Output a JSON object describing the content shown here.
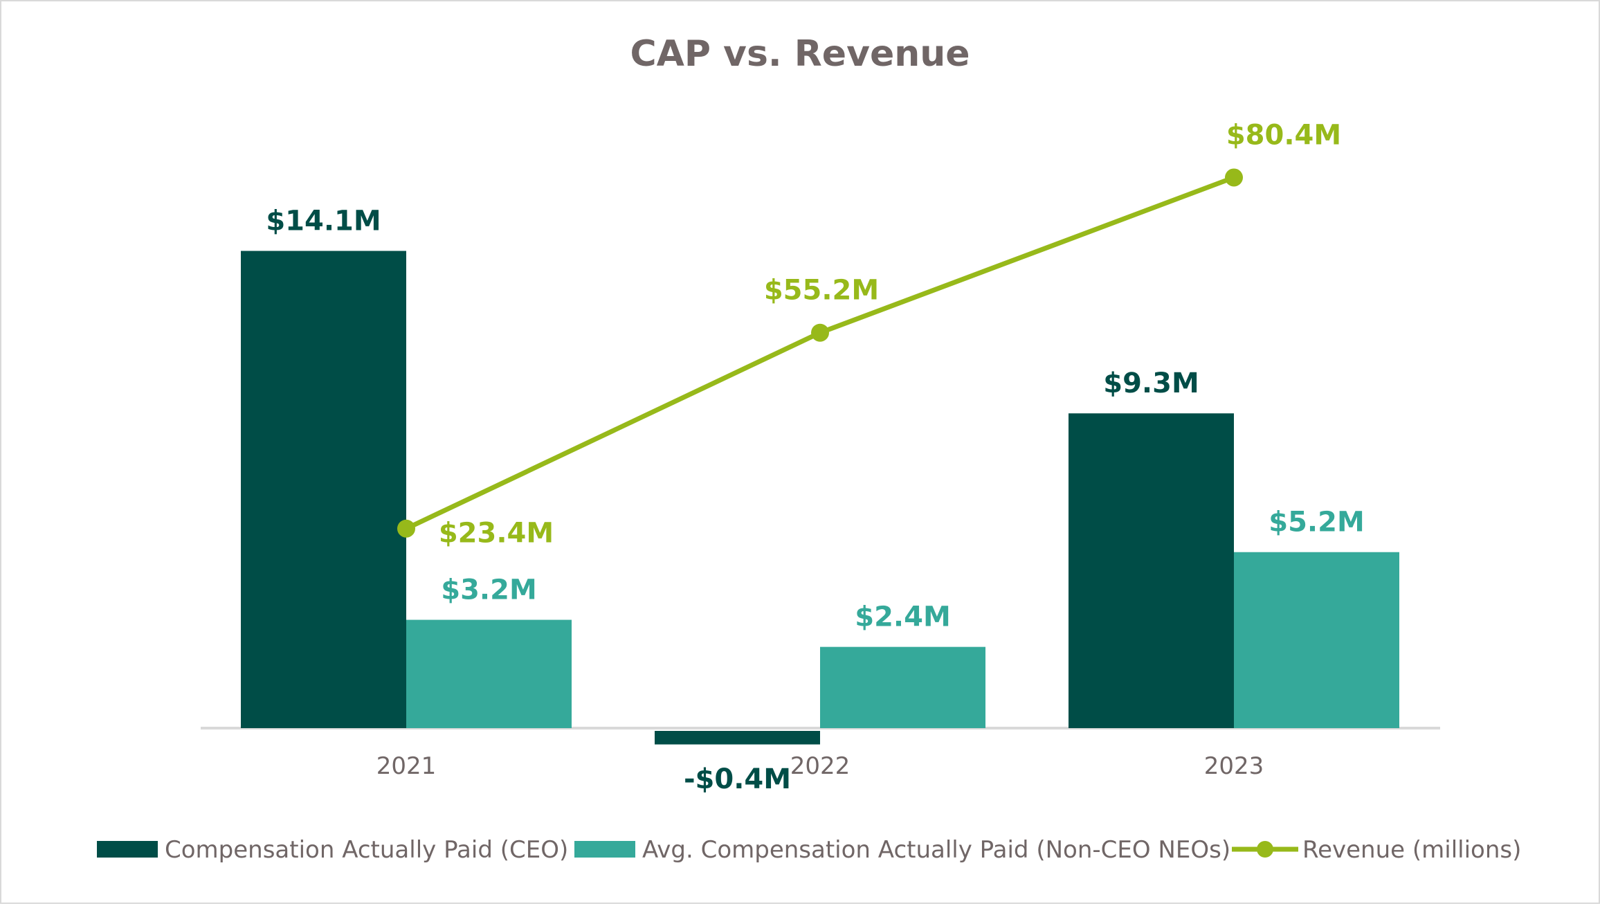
{
  "chart_data": {
    "type": "bar",
    "title": "CAP vs. Revenue",
    "categories": [
      "2021",
      "2022",
      "2023"
    ],
    "series": [
      {
        "name": "Compensation Actually Paid (CEO)",
        "kind": "bar",
        "axis": "primary",
        "values": [
          14.1,
          -0.4,
          9.3
        ],
        "labels": [
          "$14.1M",
          "-$0.4M",
          "$9.3M"
        ],
        "color": "#004d47"
      },
      {
        "name": "Avg. Compensation Actually Paid (Non-CEO NEOs)",
        "kind": "bar",
        "axis": "primary",
        "values": [
          3.2,
          2.4,
          5.2
        ],
        "labels": [
          "$3.2M",
          "$2.4M",
          "$5.2M"
        ],
        "color": "#35a99a"
      },
      {
        "name": "Revenue (millions)",
        "kind": "line",
        "axis": "secondary",
        "values": [
          23.4,
          55.2,
          80.4
        ],
        "labels": [
          "$23.4M",
          "$55.2M",
          "$80.4M"
        ],
        "color": "#97b91a"
      }
    ],
    "xlabel": "",
    "ylabel": "",
    "grid": false,
    "legend": "bottom",
    "text_color": "#706666"
  }
}
